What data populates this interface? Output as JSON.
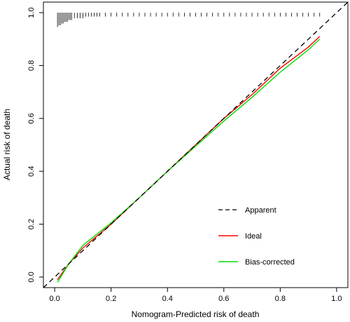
{
  "chart_data": {
    "type": "line",
    "title": "",
    "xlabel": "Nomogram-Predicted risk of death",
    "ylabel": "Actual risk of death",
    "xlim": [
      -0.04,
      1.04
    ],
    "ylim": [
      -0.04,
      1.04
    ],
    "xticks": [
      "0.0",
      "0.2",
      "0.4",
      "0.6",
      "0.8",
      "1.0"
    ],
    "yticks": [
      "0.0",
      "0.2",
      "0.4",
      "0.6",
      "0.8",
      "1.0"
    ],
    "grid": false,
    "legend_position": "bottom-right",
    "series": [
      {
        "name": "Apparent",
        "color": "#000000",
        "style": "dashed",
        "x": [
          -0.04,
          1.04
        ],
        "y": [
          -0.04,
          1.04
        ]
      },
      {
        "name": "Ideal",
        "color": "#ff0000",
        "style": "solid",
        "x": [
          0.01,
          0.05,
          0.1,
          0.2,
          0.3,
          0.4,
          0.5,
          0.6,
          0.7,
          0.8,
          0.9,
          0.94
        ],
        "y": [
          -0.01,
          0.05,
          0.11,
          0.2,
          0.3,
          0.4,
          0.5,
          0.6,
          0.69,
          0.79,
          0.87,
          0.91
        ]
      },
      {
        "name": "Bias-corrected",
        "color": "#00dd00",
        "style": "solid",
        "x": [
          0.01,
          0.05,
          0.1,
          0.2,
          0.3,
          0.4,
          0.5,
          0.6,
          0.7,
          0.8,
          0.9,
          0.94
        ],
        "y": [
          -0.02,
          0.05,
          0.12,
          0.205,
          0.3,
          0.4,
          0.495,
          0.59,
          0.68,
          0.775,
          0.86,
          0.9
        ]
      }
    ],
    "rug": {
      "y": 1.0,
      "x": [
        0.01,
        0.015,
        0.02,
        0.025,
        0.03,
        0.035,
        0.04,
        0.045,
        0.05,
        0.055,
        0.06,
        0.07,
        0.08,
        0.09,
        0.1,
        0.11,
        0.12,
        0.13,
        0.14,
        0.15,
        0.16,
        0.18,
        0.2,
        0.22,
        0.24,
        0.26,
        0.28,
        0.3,
        0.32,
        0.34,
        0.36,
        0.38,
        0.4,
        0.42,
        0.44,
        0.46,
        0.48,
        0.5,
        0.52,
        0.54,
        0.56,
        0.58,
        0.6,
        0.62,
        0.64,
        0.66,
        0.68,
        0.7,
        0.72,
        0.74,
        0.76,
        0.78,
        0.8,
        0.82,
        0.84,
        0.86,
        0.88,
        0.9,
        0.92,
        0.94
      ],
      "counts": [
        7,
        6,
        6,
        5,
        5,
        4,
        4,
        4,
        3,
        3,
        3,
        2,
        2,
        2,
        2,
        1,
        1,
        1,
        1,
        1,
        1,
        1,
        1,
        1,
        1,
        1,
        1,
        1,
        1,
        1,
        1,
        1,
        1,
        1,
        1,
        1,
        1,
        1,
        1,
        1,
        1,
        1,
        1,
        1,
        1,
        1,
        1,
        1,
        1,
        1,
        1,
        1,
        1,
        1,
        1,
        1,
        1,
        1,
        1,
        1
      ]
    }
  }
}
